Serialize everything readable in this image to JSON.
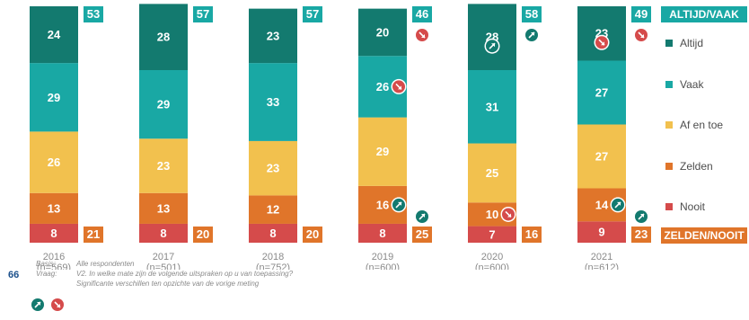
{
  "chart_data": {
    "type": "bar",
    "stacked": true,
    "orientation": "vertical",
    "categories": [
      "2016\n(n=569)",
      "2017\n(n=501)",
      "2018\n(n=752)",
      "2019\n(n=600)",
      "2020\n(n=600)",
      "2021\n(n=612)"
    ],
    "category_years": [
      "2016",
      "2017",
      "2018",
      "2019",
      "2020",
      "2021"
    ],
    "category_n": [
      "(n=569)",
      "(n=501)",
      "(n=752)",
      "(n=600)",
      "(n=600)",
      "(n=612)"
    ],
    "series": [
      {
        "name": "Nooit",
        "color": "#d54b4b",
        "values": [
          8,
          8,
          8,
          8,
          7,
          9
        ]
      },
      {
        "name": "Zelden",
        "color": "#e0752a",
        "values": [
          13,
          13,
          12,
          16,
          10,
          14
        ]
      },
      {
        "name": "Af en toe",
        "color": "#f2c14e",
        "values": [
          26,
          23,
          23,
          29,
          25,
          27
        ]
      },
      {
        "name": "Vaak",
        "color": "#19a8a4",
        "values": [
          29,
          29,
          33,
          26,
          31,
          27
        ]
      },
      {
        "name": "Altijd",
        "color": "#137a6f",
        "values": [
          24,
          28,
          23,
          20,
          28,
          23
        ]
      }
    ],
    "totals": {
      "altijd_vaak": {
        "name": "ALTIJD/VAAK",
        "color": "#19a8a4",
        "values": [
          53,
          57,
          57,
          46,
          58,
          49
        ]
      },
      "zelden_nooit": {
        "name": "ZELDEN/NOOIT",
        "color": "#e0752a",
        "values": [
          21,
          20,
          20,
          25,
          16,
          23
        ]
      }
    },
    "significance": [
      {
        "year": "2019",
        "segment": "Vaak",
        "direction": "down"
      },
      {
        "year": "2019",
        "segment": "Zelden",
        "direction": "up"
      },
      {
        "year": "2019",
        "segment": "Altijd/Vaak total",
        "direction": "down"
      },
      {
        "year": "2019",
        "segment": "Zelden/Nooit total",
        "direction": "up"
      },
      {
        "year": "2020",
        "segment": "Altijd",
        "direction": "up"
      },
      {
        "year": "2020",
        "segment": "Zelden",
        "direction": "down"
      },
      {
        "year": "2020",
        "segment": "Altijd/Vaak total",
        "direction": "up"
      },
      {
        "year": "2021",
        "segment": "Altijd",
        "direction": "down"
      },
      {
        "year": "2021",
        "segment": "Zelden",
        "direction": "up"
      },
      {
        "year": "2021",
        "segment": "Altijd/Vaak total",
        "direction": "down"
      },
      {
        "year": "2021",
        "segment": "Zelden/Nooit total",
        "direction": "up"
      }
    ],
    "legend": [
      "Altijd",
      "Vaak",
      "Af en toe",
      "Zelden",
      "Nooit"
    ],
    "legend_placement": "right",
    "ylim": [
      0,
      100
    ],
    "grid": false,
    "title": "",
    "xlabel": "",
    "ylabel": ""
  },
  "icon_colors": {
    "up": "#137a6f",
    "down": "#d54b4b"
  },
  "footer": {
    "page_number": "66",
    "basis_key": "Basis:",
    "basis_value": "Alle respondenten",
    "vraag_key": "Vraag:",
    "vraag_value": "V2. In welke mate zijn de volgende uitspraken op u van toepassing?",
    "significance_value": "Significante verschillen ten opzichte van de vorige meting",
    "icons": [
      "arrow-up-circle-icon",
      "arrow-down-circle-icon"
    ]
  }
}
